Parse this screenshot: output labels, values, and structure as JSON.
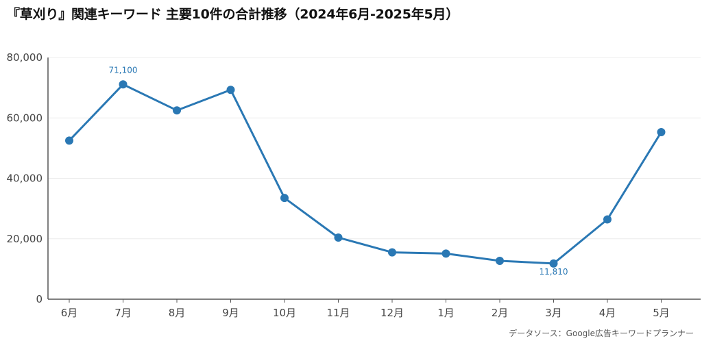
{
  "title": "『草刈り』関連キーワード 主要10件の合計推移（2024年6月-2025年5月）",
  "source": "データソース：Google広告キーワードプランナー",
  "colors": {
    "line": "#2a78b4",
    "axis": "#555555",
    "grid": "#ececec"
  },
  "chart_data": {
    "type": "line",
    "categories": [
      "6月",
      "7月",
      "8月",
      "9月",
      "10月",
      "11月",
      "12月",
      "1月",
      "2月",
      "3月",
      "4月",
      "5月"
    ],
    "series": [
      {
        "values": [
          52500,
          71100,
          62500,
          69300,
          33500,
          20400,
          15500,
          15100,
          12700,
          11810,
          26400,
          55300
        ]
      }
    ],
    "ylim": [
      0,
      80000
    ],
    "yticks": [
      "0",
      "20,000",
      "40,000",
      "60,000",
      "80,000"
    ],
    "ytick_values": [
      0,
      20000,
      40000,
      60000,
      80000
    ],
    "data_labels": [
      {
        "index": 1,
        "text": "71,100",
        "position": "above"
      },
      {
        "index": 9,
        "text": "11,810",
        "position": "below"
      }
    ],
    "grid": true,
    "legend": "none"
  }
}
